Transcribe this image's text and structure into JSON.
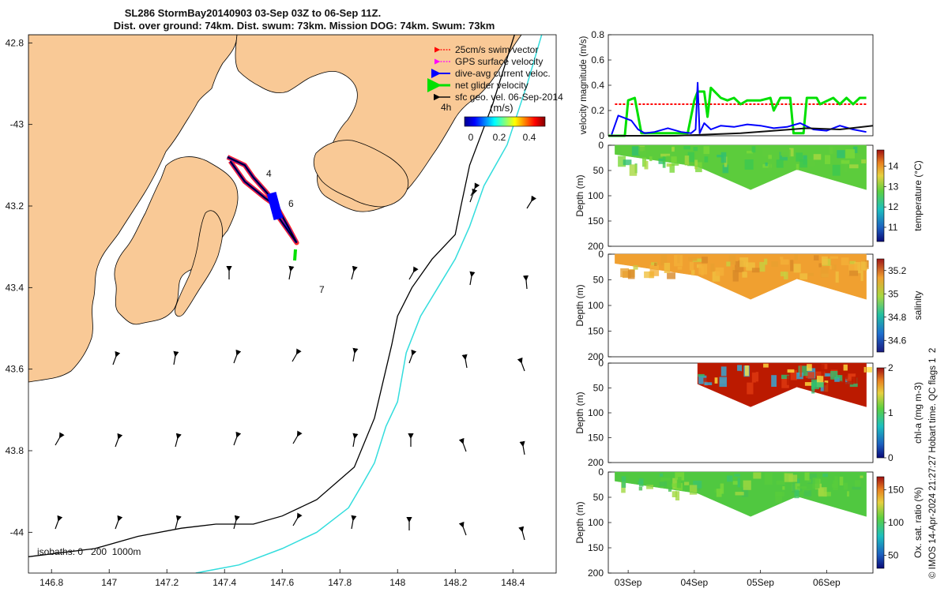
{
  "header": {
    "title_line1": "SL286 StormBay20140903 03-Sep 03Z to 06-Sep 11Z.",
    "title_line2": "Dist. over ground: 74km. Dist. swum: 73km. Mission DOG: 74km. Swum: 73km"
  },
  "colors": {
    "land": "#f9c996",
    "swim_vector": "#ff0000",
    "gps_velocity": "#ff00ff",
    "dive_avg": "#0000ff",
    "net_glider": "#00e000",
    "sfc_geo": "#000000",
    "isobath_200": "#000000",
    "isobath_1000": "#33dddd"
  },
  "chart_data": [
    {
      "type": "map",
      "name": "track map",
      "xlim": [
        146.72,
        148.55
      ],
      "ylim": [
        -44.1,
        -42.78
      ],
      "x_ticks": [
        146.8,
        147,
        147.2,
        147.4,
        147.6,
        147.8,
        148,
        148.2,
        148.4
      ],
      "x_tick_labels": [
        "146.8",
        "147",
        "147.2",
        "147.4",
        "147.6",
        "147.8",
        "148",
        "148.2",
        "148.4"
      ],
      "y_ticks": [
        -42.8,
        -43,
        -43.2,
        -43.4,
        -43.6,
        -43.8,
        -44
      ],
      "y_tick_labels": [
        "42.8",
        "-43",
        "43.2",
        "43.4",
        "43.6",
        "43.8",
        "-44"
      ],
      "legend": [
        {
          "label": "25cm/s swim vector",
          "icon": "arrow-red"
        },
        {
          "label": "GPS surface velocity",
          "icon": "arrow-magenta"
        },
        {
          "label": "dive-avg current veloc.",
          "icon": "arrow-blue"
        },
        {
          "label": "net glider velocity",
          "icon": "arrow-green"
        },
        {
          "label": "sfc geo. vel. 06-Sep-2014",
          "icon": "arrow-black"
        }
      ],
      "colorbar": {
        "label": "(m/s)",
        "ticks": [
          "0",
          "0.2",
          "0.4"
        ],
        "range": [
          0,
          0.5
        ]
      },
      "time_labels": [
        "4h",
        "4",
        "6",
        "7"
      ],
      "isobath_label": "isobaths: 0   200  1000m",
      "track": [
        [
          147.41,
          -43.08
        ],
        [
          147.47,
          -43.1
        ],
        [
          147.5,
          -43.13
        ],
        [
          147.55,
          -43.17
        ],
        [
          147.58,
          -43.22
        ],
        [
          147.63,
          -43.27
        ],
        [
          147.65,
          -43.29
        ],
        [
          147.62,
          -43.25
        ],
        [
          147.58,
          -43.2
        ],
        [
          147.54,
          -43.18
        ],
        [
          147.47,
          -43.14
        ],
        [
          147.42,
          -43.09
        ]
      ],
      "isobath_200m": [
        [
          148.41,
          -42.77
        ],
        [
          148.33,
          -42.95
        ],
        [
          148.25,
          -43.1
        ],
        [
          148.22,
          -43.2
        ],
        [
          148.2,
          -43.27
        ],
        [
          148.12,
          -43.33
        ],
        [
          148.05,
          -43.4
        ],
        [
          148.0,
          -43.47
        ],
        [
          147.98,
          -43.54
        ],
        [
          147.96,
          -43.6
        ],
        [
          147.92,
          -43.72
        ],
        [
          147.85,
          -43.84
        ],
        [
          147.72,
          -43.92
        ],
        [
          147.6,
          -43.96
        ],
        [
          147.5,
          -43.98
        ],
        [
          147.37,
          -43.98
        ],
        [
          147.25,
          -43.99
        ],
        [
          147.1,
          -44.01
        ],
        [
          146.95,
          -44.04
        ],
        [
          146.72,
          -44.06
        ]
      ],
      "isobath_1000m": [
        [
          148.5,
          -42.78
        ],
        [
          148.45,
          -42.9
        ],
        [
          148.38,
          -43.05
        ],
        [
          148.3,
          -43.15
        ],
        [
          148.25,
          -43.25
        ],
        [
          148.2,
          -43.33
        ],
        [
          148.14,
          -43.4
        ],
        [
          148.08,
          -43.47
        ],
        [
          148.03,
          -43.56
        ],
        [
          148.0,
          -43.68
        ],
        [
          147.96,
          -43.74
        ],
        [
          147.92,
          -43.83
        ],
        [
          147.88,
          -43.88
        ],
        [
          147.83,
          -43.94
        ],
        [
          147.72,
          -44.0
        ],
        [
          147.6,
          -44.04
        ],
        [
          147.45,
          -44.08
        ],
        [
          147.3,
          -44.1
        ]
      ]
    },
    {
      "type": "line",
      "name": "velocity magnitude",
      "ylabel": "velocity magnitude (m/s)",
      "ylim": [
        0,
        0.8
      ],
      "yticks": [
        0,
        0.2,
        0.4,
        0.6,
        0.8
      ],
      "xlim": [
        0,
        4
      ],
      "series": [
        {
          "name": "swim vector",
          "color": "#ff0000",
          "dashed": true,
          "x": [
            0.1,
            1.35,
            1.45,
            3.9
          ],
          "y": [
            0.25,
            0.25,
            0.25,
            0.25
          ]
        },
        {
          "name": "net glider velocity",
          "color": "#00e000",
          "x": [
            0.0,
            0.25,
            0.3,
            0.4,
            0.5,
            1.2,
            1.3,
            1.35,
            1.45,
            1.5,
            1.55,
            1.7,
            1.8,
            1.9,
            2.0,
            2.1,
            2.2,
            2.3,
            2.45,
            2.5,
            2.6,
            2.75,
            2.8,
            2.95,
            3.0,
            3.15,
            3.2,
            3.4,
            3.5,
            3.6,
            3.7,
            3.8,
            3.9
          ],
          "y": [
            0.0,
            0.0,
            0.28,
            0.3,
            0.02,
            0.02,
            0.28,
            0.35,
            0.35,
            0.15,
            0.38,
            0.3,
            0.28,
            0.3,
            0.25,
            0.28,
            0.28,
            0.28,
            0.3,
            0.2,
            0.3,
            0.3,
            0.02,
            0.02,
            0.3,
            0.3,
            0.25,
            0.3,
            0.25,
            0.3,
            0.25,
            0.3,
            0.3
          ]
        },
        {
          "name": "dive-avg current veloc.",
          "color": "#0000ff",
          "x": [
            0.05,
            0.15,
            0.35,
            0.45,
            0.55,
            0.7,
            0.9,
            1.1,
            1.25,
            1.32,
            1.35,
            1.38,
            1.45,
            1.55,
            1.7,
            1.9,
            2.1,
            2.3,
            2.5,
            2.7,
            2.9,
            3.1,
            3.3,
            3.5,
            3.7,
            3.9
          ],
          "y": [
            0.01,
            0.16,
            0.12,
            0.05,
            0.02,
            0.03,
            0.06,
            0.03,
            0.02,
            0.05,
            0.42,
            0.02,
            0.1,
            0.05,
            0.08,
            0.07,
            0.09,
            0.08,
            0.06,
            0.07,
            0.1,
            0.05,
            0.04,
            0.08,
            0.05,
            0.03
          ]
        },
        {
          "name": "sfc geo. vel.",
          "color": "#111111",
          "x": [
            0.0,
            0.5,
            1.0,
            1.5,
            2.0,
            2.5,
            3.0,
            3.5,
            4.0
          ],
          "y": [
            0.0,
            0.0,
            0.0,
            0.01,
            0.02,
            0.04,
            0.06,
            0.05,
            0.08
          ]
        }
      ]
    },
    {
      "type": "heatmap",
      "name": "temperature",
      "cbar_label": "temperature (°C)",
      "cbar_ticks": [
        "11",
        "12",
        "13",
        "14"
      ],
      "cbar_range": [
        10.3,
        14.8
      ],
      "ylabel": "Depth (m)",
      "yticks": [
        0,
        50,
        100,
        150,
        200
      ],
      "ylim": [
        0,
        200
      ],
      "data_start": 0.1,
      "fill_color": "#5ccc3c",
      "max_depth_profile": [
        [
          0.1,
          18
        ],
        [
          1.35,
          42
        ],
        [
          2.15,
          88
        ],
        [
          2.85,
          48
        ],
        [
          3.9,
          88
        ]
      ]
    },
    {
      "type": "heatmap",
      "name": "salinity",
      "cbar_label": "salinity",
      "cbar_ticks": [
        "34.6",
        "34.8",
        "35",
        "35.2"
      ],
      "cbar_range": [
        34.5,
        35.3
      ],
      "ylabel": "Depth (m)",
      "yticks": [
        0,
        50,
        100,
        150,
        200
      ],
      "ylim": [
        0,
        200
      ],
      "data_start": 0.1,
      "fill_color": "#f0a030",
      "max_depth_profile": [
        [
          0.1,
          18
        ],
        [
          1.35,
          42
        ],
        [
          2.15,
          88
        ],
        [
          2.85,
          48
        ],
        [
          3.9,
          88
        ]
      ]
    },
    {
      "type": "heatmap",
      "name": "chl-a",
      "cbar_label": "chl-a (mg m-3)",
      "cbar_ticks": [
        "0",
        "1",
        "2"
      ],
      "cbar_range": [
        0,
        2
      ],
      "ylabel": "Depth (m)",
      "yticks": [
        0,
        50,
        100,
        150,
        200
      ],
      "ylim": [
        0,
        200
      ],
      "data_start": 1.35,
      "fill_color": "#bb1a00",
      "max_depth_profile": [
        [
          1.35,
          42
        ],
        [
          2.15,
          88
        ],
        [
          2.85,
          48
        ],
        [
          3.9,
          88
        ]
      ]
    },
    {
      "type": "heatmap",
      "name": "oxygen saturation",
      "cbar_label": "Ox. sat. ratio (%)",
      "cbar_ticks": [
        "50",
        "100",
        "150"
      ],
      "cbar_range": [
        30,
        170
      ],
      "ylabel": "Depth (m)",
      "yticks": [
        0,
        50,
        100,
        150,
        200
      ],
      "ylim": [
        0,
        200
      ],
      "data_start": 0.1,
      "fill_color": "#50c840",
      "max_depth_profile": [
        [
          0.1,
          18
        ],
        [
          1.35,
          42
        ],
        [
          2.15,
          88
        ],
        [
          2.85,
          48
        ],
        [
          3.9,
          88
        ]
      ]
    }
  ],
  "time_axis": {
    "ticks": [
      0.3,
      1.3,
      2.3,
      3.3
    ],
    "labels": [
      "03Sep",
      "04Sep",
      "05Sep",
      "06Sep"
    ]
  },
  "footer": {
    "credit": "© IMOS 14-Apr-2024 21:27:27 Hobart time. QC flags 1  2"
  }
}
